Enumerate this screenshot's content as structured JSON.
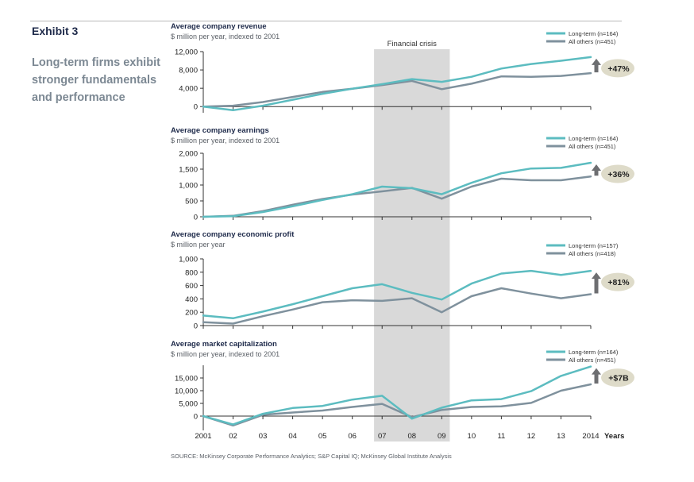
{
  "exhibit_label": "Exhibit 3",
  "heading": "Long-term firms exhibit stronger fundamentals and performance",
  "crisis_label": "Financial crisis",
  "x_axis": {
    "tick_labels": [
      "2001",
      "02",
      "03",
      "04",
      "05",
      "06",
      "07",
      "08",
      "09",
      "10",
      "11",
      "12",
      "13",
      "2014"
    ],
    "axis_title": "Years"
  },
  "source": "SOURCE: McKinsey Corporate Performance Analytics; S&P Capital IQ; McKinsey Global Institute Analysis",
  "colors": {
    "long_term": "#5cbcc0",
    "all_others": "#7f919d",
    "crisis_band": "#d9d9d9",
    "badge": "#dedbc9",
    "arrow": "#6d6e71"
  },
  "chart_data": [
    {
      "type": "line",
      "title": "Average company revenue",
      "subtitle": "$ million per year, indexed to 2001",
      "x": [
        "2001",
        "02",
        "03",
        "04",
        "05",
        "06",
        "07",
        "08",
        "09",
        "10",
        "11",
        "12",
        "13",
        "2014"
      ],
      "ylim": [
        -1000,
        12000
      ],
      "yticks": [
        0,
        4000,
        8000,
        12000
      ],
      "ytick_labels": [
        "0",
        "4,000",
        "8,000",
        "12,000"
      ],
      "series": [
        {
          "name": "Long-term",
          "legend": "Long-term (n=164)",
          "values": [
            0,
            -800,
            200,
            1500,
            2800,
            3900,
            4900,
            6000,
            5400,
            6500,
            8300,
            9300,
            10000,
            10800
          ]
        },
        {
          "name": "All others",
          "legend": "All others (n=451)",
          "values": [
            0,
            200,
            1000,
            2100,
            3200,
            3900,
            4700,
            5600,
            3800,
            5000,
            6600,
            6500,
            6700,
            7300
          ]
        }
      ],
      "change_label": "+47%"
    },
    {
      "type": "line",
      "title": "Average company earnings",
      "subtitle": "$ million per year, indexed to 2001",
      "x": [
        "2001",
        "02",
        "03",
        "04",
        "05",
        "06",
        "07",
        "08",
        "09",
        "10",
        "11",
        "12",
        "13",
        "2014"
      ],
      "ylim": [
        0,
        2000
      ],
      "yticks": [
        0,
        500,
        1000,
        1500,
        2000
      ],
      "ytick_labels": [
        "0",
        "500",
        "1,000",
        "1,500",
        "2,000"
      ],
      "series": [
        {
          "name": "Long-term",
          "legend": "Long-term (n=164)",
          "values": [
            0,
            20,
            150,
            330,
            530,
            710,
            950,
            900,
            710,
            1070,
            1370,
            1520,
            1540,
            1700
          ]
        },
        {
          "name": "All others",
          "legend": "All others (n=451)",
          "values": [
            0,
            30,
            180,
            380,
            560,
            700,
            800,
            910,
            570,
            950,
            1200,
            1150,
            1150,
            1270
          ]
        }
      ],
      "change_label": "+36%"
    },
    {
      "type": "line",
      "title": "Average company economic profit",
      "subtitle": "$ million per year",
      "x": [
        "2001",
        "02",
        "03",
        "04",
        "05",
        "06",
        "07",
        "08",
        "09",
        "10",
        "11",
        "12",
        "13",
        "2014"
      ],
      "ylim": [
        0,
        1000
      ],
      "yticks": [
        0,
        200,
        400,
        600,
        800,
        1000
      ],
      "ytick_labels": [
        "0",
        "200",
        "400",
        "600",
        "800",
        "1,000"
      ],
      "series": [
        {
          "name": "Long-term",
          "legend": "Long-term (n=157)",
          "values": [
            150,
            110,
            210,
            320,
            440,
            560,
            620,
            490,
            390,
            630,
            780,
            820,
            760,
            820
          ]
        },
        {
          "name": "All others",
          "legend": "All others (n=418)",
          "values": [
            50,
            30,
            140,
            240,
            350,
            380,
            370,
            410,
            200,
            440,
            560,
            480,
            410,
            470
          ]
        }
      ],
      "change_label": "+81%"
    },
    {
      "type": "line",
      "title": "Average market capitalization",
      "subtitle": "$ million per year, indexed to 2001",
      "x": [
        "2001",
        "02",
        "03",
        "04",
        "05",
        "06",
        "07",
        "08",
        "09",
        "10",
        "11",
        "12",
        "13",
        "2014"
      ],
      "ylim": [
        -5000,
        20000
      ],
      "yticks": [
        0,
        5000,
        10000,
        15000
      ],
      "ytick_labels": [
        "0",
        "5,000",
        "10,000",
        "15,000"
      ],
      "series": [
        {
          "name": "Long-term",
          "legend": "Long-term (n=164)",
          "values": [
            0,
            -3300,
            900,
            3200,
            4000,
            6500,
            8000,
            -1000,
            3300,
            6200,
            6700,
            9800,
            15800,
            19500
          ]
        },
        {
          "name": "All others",
          "legend": "All others (n=451)",
          "values": [
            0,
            -3700,
            500,
            1400,
            2200,
            3600,
            4800,
            -400,
            2400,
            3600,
            3800,
            5200,
            10000,
            12500
          ]
        }
      ],
      "change_label": "+$7B"
    }
  ]
}
